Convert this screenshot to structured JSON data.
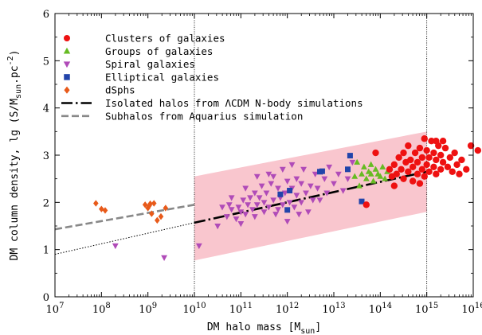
{
  "chart_data": {
    "type": "scatter",
    "xlabel": "DM halo mass [M",
    "xlabel_sub": "sun",
    "xlabel_close": "]",
    "ylabel": "DM column density, lg (S/M",
    "ylabel_sub": "sun",
    "ylabel_mid": ".pc",
    "ylabel_sup": "-2",
    "ylabel_close": ")",
    "x_scale": "log",
    "xlim": [
      10000000,
      10000000000000000
    ],
    "ylim": [
      0,
      6
    ],
    "x_ticks": [
      {
        "value": 10000000,
        "base": "10",
        "exp": "7"
      },
      {
        "value": 100000000,
        "base": "10",
        "exp": "8"
      },
      {
        "value": 1000000000,
        "base": "10",
        "exp": "9"
      },
      {
        "value": 10000000000,
        "base": "10",
        "exp": "10"
      },
      {
        "value": 100000000000,
        "base": "10",
        "exp": "11"
      },
      {
        "value": 1000000000000,
        "base": "10",
        "exp": "12"
      },
      {
        "value": 10000000000000,
        "base": "10",
        "exp": "13"
      },
      {
        "value": 100000000000000,
        "base": "10",
        "exp": "14"
      },
      {
        "value": 1000000000000000,
        "base": "10",
        "exp": "15"
      },
      {
        "value": 10000000000000000,
        "base": "10",
        "exp": "16"
      }
    ],
    "y_ticks": [
      0,
      1,
      2,
      3,
      4,
      5,
      6
    ],
    "vertical_reference_lines": [
      10000000000,
      1000000000000000
    ],
    "band": {
      "color": "#f9c6ce",
      "lower": [
        [
          10000000000,
          0.77
        ],
        [
          1000000000000000,
          1.8
        ]
      ],
      "upper": [
        [
          10000000000,
          2.55
        ],
        [
          1000000000000000,
          3.5
        ]
      ]
    },
    "legend": {
      "placement": "top-left",
      "entries": [
        {
          "label": "Clusters of galaxies",
          "marker": "circle",
          "color": "#ee1111"
        },
        {
          "label": "Groups of galaxies",
          "marker": "triangle-up",
          "color": "#66bb22"
        },
        {
          "label": "Spiral galaxies",
          "marker": "triangle-down",
          "color": "#b04bb8"
        },
        {
          "label": "Elliptical galaxies",
          "marker": "square",
          "color": "#2244aa"
        },
        {
          "label": "dSphs",
          "marker": "diamond",
          "color": "#e85a1a"
        },
        {
          "label": "Isolated halos from ΛCDM N-body simulations",
          "marker": "dashdot",
          "color": "#000000"
        },
        {
          "label": "Subhalos from Aquarius simulation",
          "marker": "dashed",
          "color": "#888888"
        }
      ]
    },
    "lines": [
      {
        "name": "Isolated halos from ΛCDM N-body simulations",
        "style": "dashdot",
        "color": "#000000",
        "width": 2.6,
        "points": [
          [
            10000000000,
            1.57
          ],
          [
            1000000000000000,
            2.65
          ]
        ]
      },
      {
        "name": "Isolated halos (extrapolation)",
        "style": "dotted",
        "color": "#000000",
        "width": 1,
        "points": [
          [
            10000000,
            0.9
          ],
          [
            10000000000,
            1.57
          ]
        ]
      },
      {
        "name": "Subhalos from Aquarius simulation",
        "style": "dashed",
        "color": "#888888",
        "width": 2.6,
        "points": [
          [
            10000000,
            1.43
          ],
          [
            10000000000,
            1.95
          ]
        ]
      }
    ],
    "series": [
      {
        "name": "dSphs",
        "marker": "diamond",
        "color": "#e85a1a",
        "size": 6,
        "points": [
          [
            7.88,
            1.98
          ],
          [
            8.0,
            1.86
          ],
          [
            8.08,
            1.83
          ],
          [
            8.94,
            1.95
          ],
          [
            9.0,
            1.88
          ],
          [
            9.05,
            1.97
          ],
          [
            9.13,
            1.98
          ],
          [
            9.08,
            1.76
          ],
          [
            9.2,
            1.62
          ],
          [
            9.28,
            1.7
          ],
          [
            9.38,
            1.88
          ],
          [
            9.03,
            1.93
          ]
        ]
      },
      {
        "name": "Spiral galaxies",
        "marker": "triangle-down",
        "color": "#b04bb8",
        "size": 6,
        "points": [
          [
            8.3,
            1.08
          ],
          [
            9.35,
            0.83
          ],
          [
            10.1,
            1.08
          ],
          [
            10.5,
            1.5
          ],
          [
            10.7,
            1.7
          ],
          [
            10.8,
            1.85
          ],
          [
            10.9,
            1.65
          ],
          [
            10.95,
            1.9
          ],
          [
            11.0,
            1.8
          ],
          [
            11.05,
            2.05
          ],
          [
            11.1,
            1.75
          ],
          [
            11.15,
            1.95
          ],
          [
            11.2,
            2.1
          ],
          [
            11.25,
            1.85
          ],
          [
            11.3,
            1.7
          ],
          [
            11.3,
            2.2
          ],
          [
            11.35,
            1.95
          ],
          [
            11.4,
            2.1
          ],
          [
            11.45,
            2.35
          ],
          [
            11.5,
            1.8
          ],
          [
            11.5,
            2.0
          ],
          [
            11.55,
            2.2
          ],
          [
            11.6,
            1.9
          ],
          [
            11.65,
            2.4
          ],
          [
            11.7,
            2.05
          ],
          [
            11.7,
            2.55
          ],
          [
            11.75,
            1.75
          ],
          [
            11.8,
            2.3
          ],
          [
            11.85,
            2.1
          ],
          [
            11.9,
            1.95
          ],
          [
            11.9,
            2.7
          ],
          [
            11.95,
            2.2
          ],
          [
            12.0,
            2.45
          ],
          [
            12.0,
            1.6
          ],
          [
            12.05,
            2.0
          ],
          [
            12.1,
            2.3
          ],
          [
            12.1,
            2.8
          ],
          [
            12.15,
            1.9
          ],
          [
            12.2,
            2.15
          ],
          [
            12.2,
            2.5
          ],
          [
            12.3,
            2.0
          ],
          [
            12.3,
            2.4
          ],
          [
            12.35,
            2.7
          ],
          [
            12.4,
            2.2
          ],
          [
            12.45,
            1.8
          ],
          [
            12.5,
            2.35
          ],
          [
            12.55,
            2.05
          ],
          [
            12.6,
            2.6
          ],
          [
            12.65,
            2.3
          ],
          [
            12.7,
            2.05
          ],
          [
            12.8,
            2.5
          ],
          [
            12.85,
            2.2
          ],
          [
            12.9,
            2.75
          ],
          [
            13.0,
            2.4
          ],
          [
            13.1,
            2.6
          ],
          [
            13.2,
            2.25
          ],
          [
            13.3,
            2.5
          ],
          [
            13.4,
            2.85
          ],
          [
            11.1,
            2.3
          ],
          [
            10.8,
            2.1
          ],
          [
            10.6,
            1.9
          ],
          [
            11.6,
            2.6
          ],
          [
            12.25,
            1.75
          ],
          [
            11.35,
            2.55
          ],
          [
            11.0,
            1.55
          ],
          [
            10.75,
            1.95
          ],
          [
            12.75,
            2.65
          ],
          [
            11.8,
            1.85
          ]
        ]
      },
      {
        "name": "Elliptical galaxies",
        "marker": "square",
        "color": "#2244aa",
        "size": 6,
        "points": [
          [
            11.85,
            2.17
          ],
          [
            12.0,
            1.84
          ],
          [
            12.7,
            2.65
          ],
          [
            12.75,
            2.66
          ],
          [
            13.3,
            2.7
          ],
          [
            13.35,
            2.99
          ],
          [
            13.6,
            2.02
          ],
          [
            12.05,
            2.25
          ]
        ]
      },
      {
        "name": "Groups of galaxies",
        "marker": "triangle-up",
        "color": "#66bb22",
        "size": 6,
        "points": [
          [
            13.45,
            2.55
          ],
          [
            13.55,
            2.35
          ],
          [
            13.6,
            2.6
          ],
          [
            13.65,
            2.75
          ],
          [
            13.7,
            2.5
          ],
          [
            13.75,
            2.65
          ],
          [
            13.8,
            2.8
          ],
          [
            13.85,
            2.45
          ],
          [
            13.9,
            2.7
          ],
          [
            13.95,
            2.6
          ],
          [
            14.0,
            2.55
          ],
          [
            14.05,
            2.75
          ],
          [
            14.1,
            2.5
          ],
          [
            14.15,
            2.65
          ],
          [
            13.5,
            2.85
          ],
          [
            13.8,
            2.6
          ]
        ]
      },
      {
        "name": "Clusters of galaxies",
        "marker": "circle",
        "color": "#ee1111",
        "size": 4.2,
        "points": [
          [
            13.7,
            1.95
          ],
          [
            13.9,
            3.05
          ],
          [
            14.2,
            2.7
          ],
          [
            14.25,
            2.55
          ],
          [
            14.3,
            2.8
          ],
          [
            14.35,
            2.6
          ],
          [
            14.4,
            2.95
          ],
          [
            14.45,
            2.7
          ],
          [
            14.5,
            2.5
          ],
          [
            14.5,
            3.05
          ],
          [
            14.55,
            2.85
          ],
          [
            14.6,
            2.65
          ],
          [
            14.6,
            3.2
          ],
          [
            14.65,
            2.9
          ],
          [
            14.7,
            2.45
          ],
          [
            14.7,
            2.75
          ],
          [
            14.75,
            3.05
          ],
          [
            14.8,
            2.6
          ],
          [
            14.8,
            2.85
          ],
          [
            14.85,
            3.15
          ],
          [
            14.9,
            2.7
          ],
          [
            14.9,
            2.95
          ],
          [
            14.95,
            2.55
          ],
          [
            15.0,
            2.8
          ],
          [
            15.0,
            3.1
          ],
          [
            15.05,
            2.65
          ],
          [
            15.05,
            2.95
          ],
          [
            15.1,
            3.3
          ],
          [
            15.15,
            2.75
          ],
          [
            15.15,
            3.05
          ],
          [
            15.2,
            2.6
          ],
          [
            15.2,
            2.9
          ],
          [
            15.25,
            3.2
          ],
          [
            15.3,
            2.7
          ],
          [
            15.3,
            3.0
          ],
          [
            15.35,
            2.85
          ],
          [
            15.4,
            3.15
          ],
          [
            15.45,
            2.75
          ],
          [
            15.5,
            2.95
          ],
          [
            15.55,
            2.65
          ],
          [
            15.6,
            3.05
          ],
          [
            15.65,
            2.8
          ],
          [
            15.7,
            2.6
          ],
          [
            15.75,
            2.9
          ],
          [
            15.85,
            2.7
          ],
          [
            15.95,
            3.2
          ],
          [
            16.1,
            3.1
          ],
          [
            14.3,
            2.35
          ],
          [
            14.85,
            2.4
          ],
          [
            15.35,
            3.3
          ],
          [
            14.95,
            3.35
          ],
          [
            15.2,
            3.3
          ]
        ]
      }
    ]
  }
}
